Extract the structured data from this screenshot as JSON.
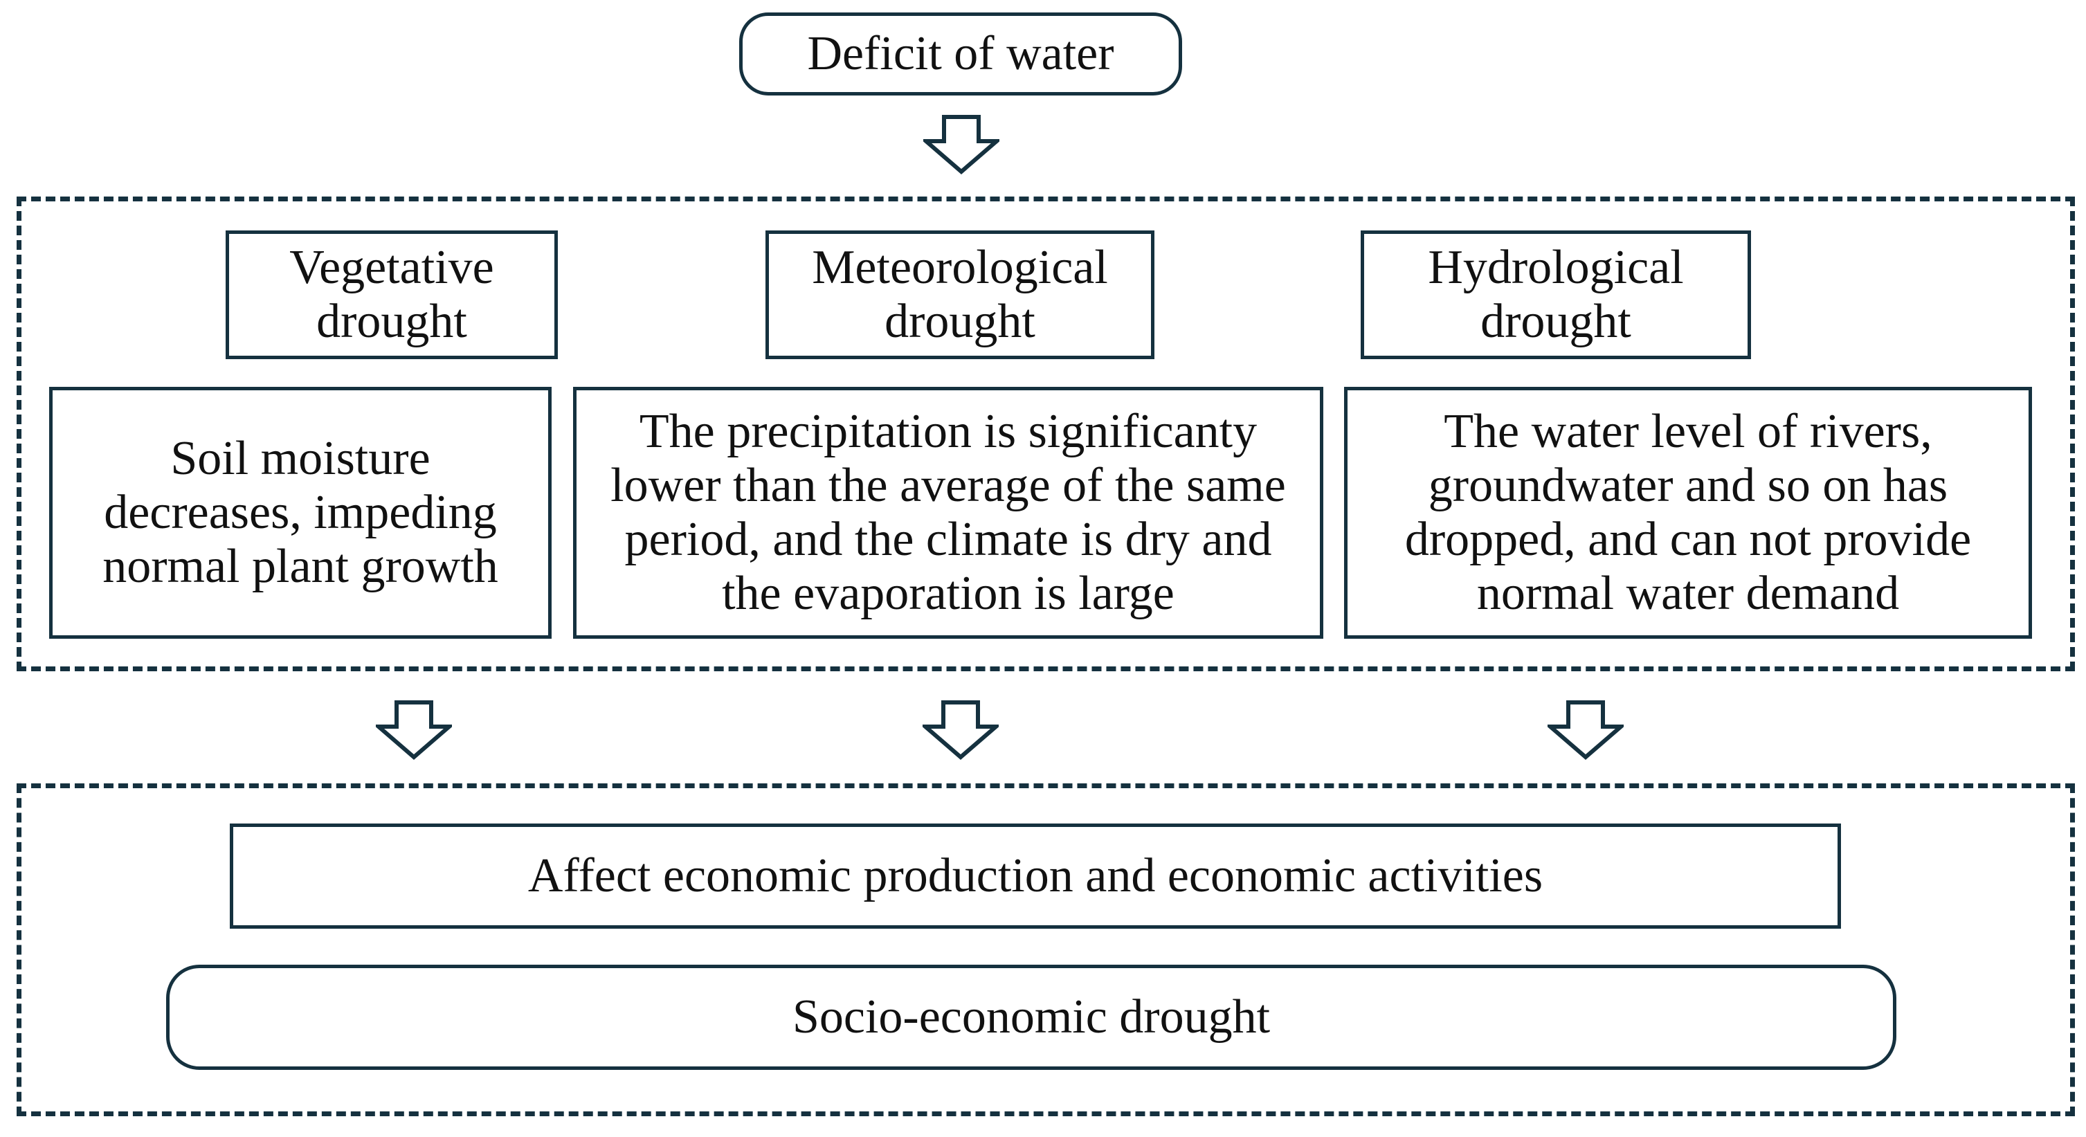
{
  "top_node": {
    "label": "Deficit of water"
  },
  "drought_types": [
    {
      "title": "Vegetative drought",
      "description": "Soil moisture decreases, impeding normal plant growth"
    },
    {
      "title": "Meteorological drought",
      "description": "The precipitation is significanty lower than the average of the same period, and the climate is dry and the evaporation is large"
    },
    {
      "title": "Hydrological drought",
      "description": "The water level of rivers, groundwater and so on has dropped, and can not provide normal water demand"
    }
  ],
  "impact": {
    "label": "Affect economic production and economic activities"
  },
  "result_node": {
    "label": "Socio-economic drought"
  },
  "colors": {
    "stroke": "#15313f",
    "background": "#ffffff",
    "text": "#111111"
  },
  "icons": [
    "down-arrow-icon"
  ]
}
